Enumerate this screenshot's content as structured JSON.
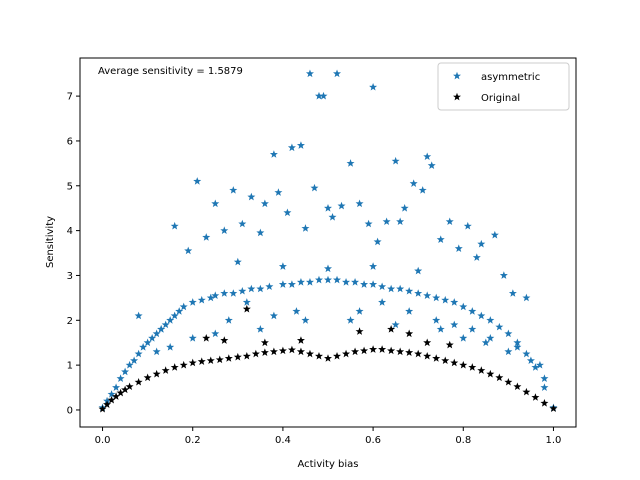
{
  "chart_data": {
    "type": "scatter",
    "title": "",
    "xlabel": "Activity bias",
    "ylabel": "Sensitivity",
    "xlim": [
      -0.05,
      1.05
    ],
    "ylim": [
      -0.38,
      7.85
    ],
    "xticks": [
      0.0,
      0.2,
      0.4,
      0.6,
      0.8,
      1.0
    ],
    "xtick_labels": [
      "0.0",
      "0.2",
      "0.4",
      "0.6",
      "0.8",
      "1.0"
    ],
    "yticks": [
      0,
      1,
      2,
      3,
      4,
      5,
      6,
      7
    ],
    "ytick_labels": [
      "0",
      "1",
      "2",
      "3",
      "4",
      "5",
      "6",
      "7"
    ],
    "annotation": "Average sensitivity = 1.5879",
    "legend_position": "upper right",
    "grid": false,
    "series": [
      {
        "name": "asymmetric",
        "color": "#1f77b4",
        "marker": "star",
        "x": [
          0.0,
          0.01,
          0.02,
          0.03,
          0.04,
          0.05,
          0.06,
          0.07,
          0.08,
          0.09,
          0.1,
          0.11,
          0.12,
          0.13,
          0.14,
          0.15,
          0.16,
          0.17,
          0.18,
          0.2,
          0.22,
          0.24,
          0.25,
          0.27,
          0.29,
          0.31,
          0.33,
          0.35,
          0.37,
          0.4,
          0.42,
          0.44,
          0.46,
          0.48,
          0.5,
          0.52,
          0.54,
          0.56,
          0.58,
          0.6,
          0.62,
          0.64,
          0.66,
          0.68,
          0.7,
          0.72,
          0.74,
          0.76,
          0.78,
          0.8,
          0.82,
          0.84,
          0.86,
          0.88,
          0.9,
          0.92,
          0.94,
          0.96,
          0.98,
          1.0,
          0.46,
          0.52,
          0.48,
          0.6,
          0.49,
          0.44,
          0.38,
          0.42,
          0.55,
          0.72,
          0.73,
          0.65,
          0.69,
          0.21,
          0.25,
          0.29,
          0.33,
          0.36,
          0.39,
          0.47,
          0.5,
          0.53,
          0.57,
          0.63,
          0.67,
          0.71,
          0.77,
          0.81,
          0.84,
          0.87,
          0.16,
          0.19,
          0.23,
          0.27,
          0.31,
          0.35,
          0.41,
          0.45,
          0.51,
          0.59,
          0.61,
          0.66,
          0.75,
          0.79,
          0.83,
          0.89,
          0.91,
          0.94,
          0.08,
          0.13,
          0.97,
          0.3,
          0.4,
          0.5,
          0.6,
          0.7,
          0.35,
          0.45,
          0.55,
          0.65,
          0.25,
          0.75,
          0.8,
          0.2,
          0.85,
          0.15,
          0.9,
          0.12,
          0.28,
          0.32,
          0.38,
          0.43,
          0.57,
          0.62,
          0.68,
          0.74,
          0.78,
          0.82,
          0.86,
          0.92,
          0.95,
          0.98
        ],
        "y": [
          0.05,
          0.2,
          0.35,
          0.5,
          0.7,
          0.85,
          1.0,
          1.1,
          1.25,
          1.4,
          1.5,
          1.6,
          1.7,
          1.8,
          1.9,
          2.0,
          2.1,
          2.2,
          2.3,
          2.4,
          2.45,
          2.5,
          2.55,
          2.6,
          2.6,
          2.65,
          2.7,
          2.7,
          2.75,
          2.8,
          2.8,
          2.85,
          2.85,
          2.9,
          2.9,
          2.9,
          2.85,
          2.85,
          2.8,
          2.8,
          2.75,
          2.7,
          2.7,
          2.65,
          2.6,
          2.55,
          2.5,
          2.45,
          2.4,
          2.3,
          2.2,
          2.1,
          2.0,
          1.85,
          1.7,
          1.5,
          1.25,
          0.95,
          0.5,
          0.05,
          7.5,
          7.5,
          7.0,
          7.2,
          7.0,
          5.9,
          5.7,
          5.85,
          5.5,
          5.65,
          5.45,
          5.55,
          5.05,
          5.1,
          4.6,
          4.9,
          4.75,
          4.6,
          4.85,
          4.95,
          4.5,
          4.55,
          4.6,
          4.2,
          4.5,
          4.9,
          4.2,
          4.1,
          3.7,
          3.9,
          4.1,
          3.55,
          3.85,
          4.0,
          4.15,
          3.95,
          4.4,
          4.05,
          4.3,
          4.15,
          3.75,
          4.2,
          3.8,
          3.6,
          3.4,
          3.0,
          2.6,
          2.5,
          2.1,
          1.8,
          1.0,
          3.3,
          3.2,
          3.15,
          3.2,
          3.1,
          1.8,
          2.0,
          2.0,
          1.9,
          1.7,
          1.8,
          1.6,
          1.6,
          1.5,
          1.4,
          1.3,
          1.3,
          2.0,
          2.4,
          2.1,
          2.2,
          2.2,
          2.4,
          2.2,
          2.0,
          1.9,
          1.8,
          1.6,
          1.4,
          1.1,
          0.7
        ]
      },
      {
        "name": "Original",
        "color": "#000000",
        "marker": "star",
        "x": [
          0.0,
          0.01,
          0.02,
          0.03,
          0.04,
          0.05,
          0.06,
          0.08,
          0.1,
          0.12,
          0.14,
          0.16,
          0.18,
          0.2,
          0.22,
          0.24,
          0.26,
          0.28,
          0.3,
          0.32,
          0.34,
          0.36,
          0.38,
          0.4,
          0.42,
          0.44,
          0.46,
          0.48,
          0.5,
          0.52,
          0.54,
          0.56,
          0.58,
          0.6,
          0.62,
          0.64,
          0.66,
          0.68,
          0.7,
          0.72,
          0.74,
          0.76,
          0.78,
          0.8,
          0.82,
          0.84,
          0.86,
          0.88,
          0.9,
          0.92,
          0.94,
          0.96,
          0.98,
          1.0,
          0.32,
          0.36,
          0.44,
          0.57,
          0.64,
          0.68,
          0.72,
          0.77,
          0.23,
          0.27
        ],
        "y": [
          0.02,
          0.12,
          0.22,
          0.3,
          0.38,
          0.45,
          0.52,
          0.62,
          0.72,
          0.8,
          0.88,
          0.95,
          1.0,
          1.05,
          1.08,
          1.1,
          1.12,
          1.15,
          1.18,
          1.2,
          1.25,
          1.28,
          1.3,
          1.32,
          1.34,
          1.3,
          1.25,
          1.2,
          1.15,
          1.2,
          1.25,
          1.3,
          1.32,
          1.35,
          1.35,
          1.32,
          1.3,
          1.28,
          1.25,
          1.2,
          1.15,
          1.1,
          1.05,
          1.0,
          0.95,
          0.88,
          0.8,
          0.72,
          0.62,
          0.52,
          0.4,
          0.28,
          0.15,
          0.03,
          2.25,
          1.5,
          1.55,
          1.75,
          1.8,
          1.7,
          1.5,
          1.45,
          1.6,
          1.55
        ]
      }
    ]
  }
}
